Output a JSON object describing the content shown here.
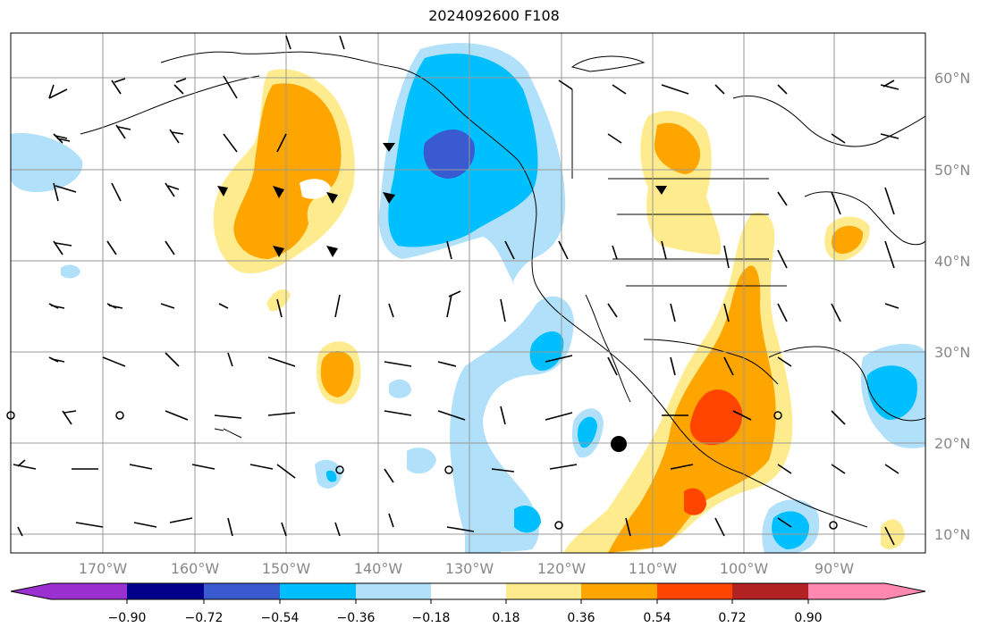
{
  "title": "2024092600 F108",
  "map": {
    "lon_labels": [
      "170°W",
      "160°W",
      "150°W",
      "140°W",
      "130°W",
      "120°W",
      "110°W",
      "100°W",
      "90°W"
    ],
    "lat_labels": [
      "60°N",
      "50°N",
      "40°N",
      "30°N",
      "20°N",
      "10°N"
    ],
    "grid": true
  },
  "colorbar": {
    "ticks": [
      "−0.90",
      "−0.72",
      "−0.54",
      "−0.36",
      "−0.18",
      "0.18",
      "0.36",
      "0.54",
      "0.72",
      "0.90"
    ],
    "colors": [
      "#9b30d0",
      "#00008b",
      "#3a5bd0",
      "#00bfff",
      "#b0e0fa",
      "#ffffff",
      "#fdeb8e",
      "#ffa500",
      "#ff4500",
      "#b22222",
      "#ff88b0"
    ]
  },
  "colors": {
    "neg_light": "#b0e0fa",
    "neg_mid": "#00bfff",
    "neg_dark": "#3a5bd0",
    "pos_light": "#fdeb8e",
    "pos_mid": "#ffa500",
    "pos_strong": "#ff4500"
  }
}
